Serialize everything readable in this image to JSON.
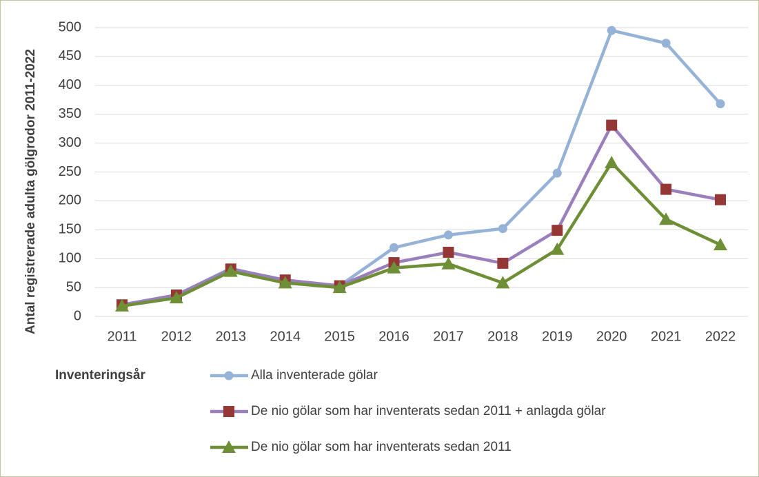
{
  "chart_data": {
    "type": "line",
    "y_label": "Antal registrerade adulta gölgrodor 2011-2022",
    "x_label": "Inventeringsår",
    "categories": [
      "2011",
      "2012",
      "2013",
      "2014",
      "2015",
      "2016",
      "2017",
      "2018",
      "2019",
      "2020",
      "2021",
      "2022"
    ],
    "series": [
      {
        "name": "Alla inventerade gölar",
        "color": "#95b3d7",
        "marker_color": "#95b3d7",
        "marker": "circle",
        "values": [
          20,
          37,
          83,
          62,
          53,
          119,
          141,
          152,
          248,
          495,
          473,
          368
        ]
      },
      {
        "name": "De nio gölar som har inventerats sedan 2011 + anlagda gölar",
        "color": "#9b7fbd",
        "marker_color": "#953735",
        "marker": "square",
        "values": [
          20,
          37,
          82,
          63,
          53,
          93,
          111,
          92,
          149,
          331,
          220,
          202
        ]
      },
      {
        "name": "De nio gölar som har inventerats sedan 2011",
        "color": "#6e8f35",
        "marker_color": "#6e8f35",
        "marker": "triangle",
        "values": [
          18,
          32,
          78,
          58,
          50,
          84,
          91,
          58,
          116,
          266,
          168,
          124
        ]
      }
    ],
    "ylim": [
      0,
      500
    ],
    "yticks": [
      0,
      50,
      100,
      150,
      200,
      250,
      300,
      350,
      400,
      450,
      500
    ],
    "grid": true
  }
}
